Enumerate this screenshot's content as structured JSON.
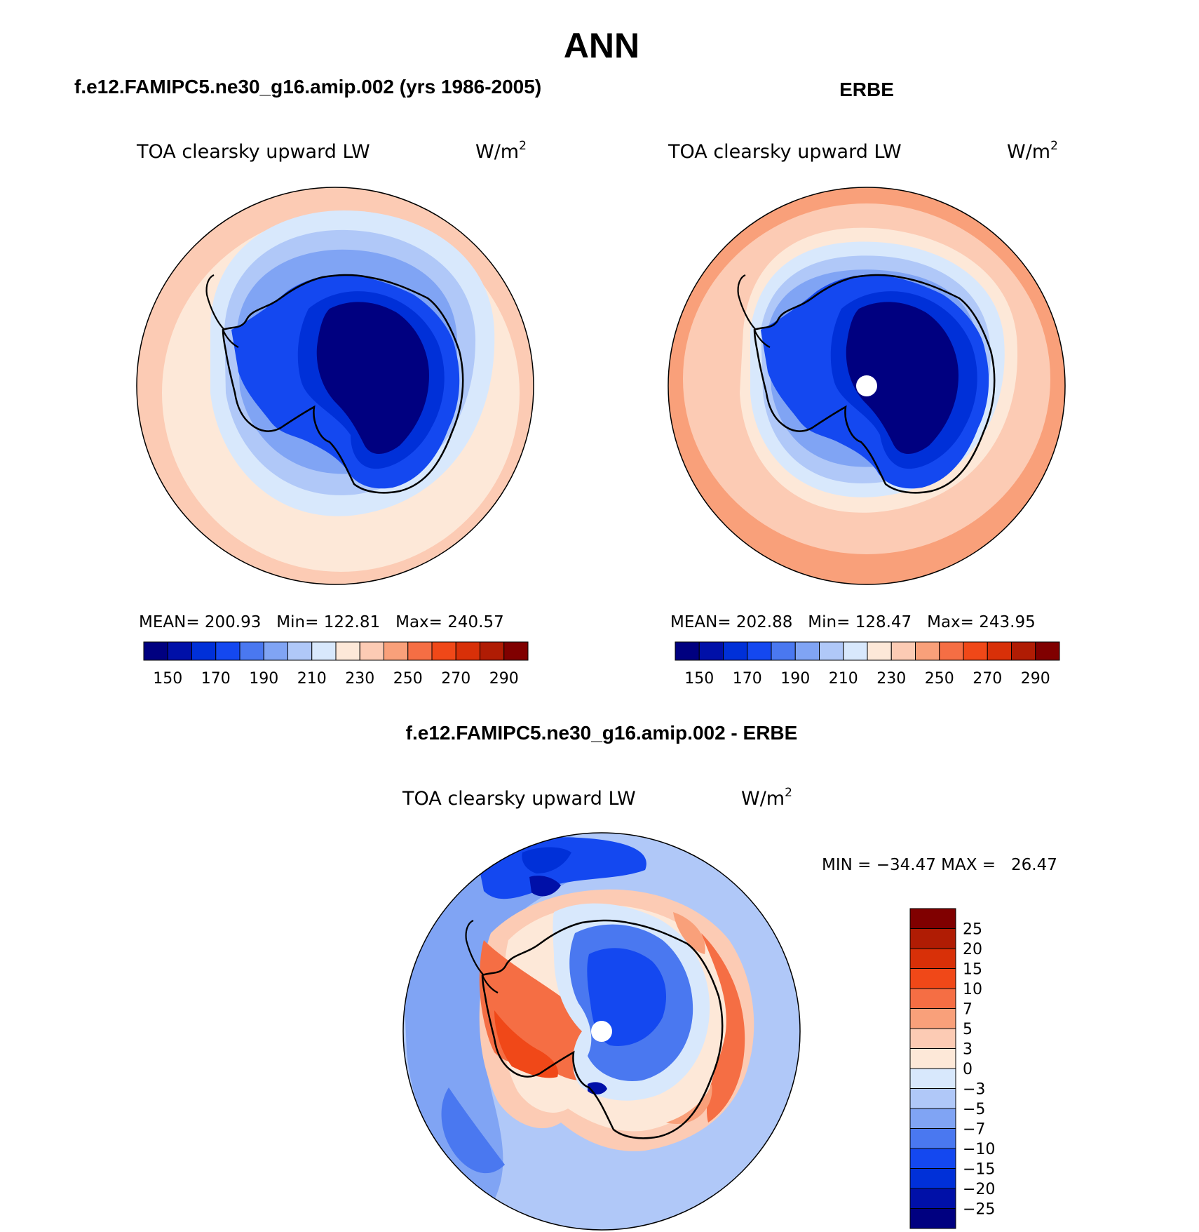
{
  "title": "ANN",
  "panels": [
    {
      "id": "model",
      "heading": "f.e12.FAMIPC5.ne30_g16.amip.002 (yrs 1986-2005)",
      "variable": "TOA clearsky upward LW",
      "units_base": "W/m",
      "units_sup": "2",
      "stats": "MEAN= 200.93   Min= 122.81   Max= 240.57",
      "mean": 200.93,
      "min": 122.81,
      "max": 240.57,
      "pole_hole": false
    },
    {
      "id": "obs",
      "heading": "ERBE",
      "variable": "TOA clearsky upward LW",
      "units_base": "W/m",
      "units_sup": "2",
      "stats": "MEAN= 202.88   Min= 128.47   Max= 243.95",
      "mean": 202.88,
      "min": 128.47,
      "max": 243.95,
      "pole_hole": true
    },
    {
      "id": "diff",
      "heading": "f.e12.FAMIPC5.ne30_g16.amip.002 - ERBE",
      "variable": "TOA clearsky upward LW",
      "units_base": "W/m",
      "units_sup": "2",
      "stats": "MIN = −34.47 MAX =   26.47",
      "min": -34.47,
      "max": 26.47,
      "pole_hole": true
    }
  ],
  "colorbar_abs": {
    "colors": [
      "#000080",
      "#0010a8",
      "#0030d8",
      "#1448f0",
      "#4a78f0",
      "#80a4f4",
      "#b0c8f8",
      "#d8e8fc",
      "#fde8d8",
      "#fccbb4",
      "#f9a07a",
      "#f56e44",
      "#f04818",
      "#d83008",
      "#b01c04",
      "#800000"
    ],
    "tick_labels": [
      "150",
      "170",
      "190",
      "210",
      "230",
      "250",
      "270",
      "290"
    ]
  },
  "colorbar_diff": {
    "colors": [
      "#000080",
      "#0010a8",
      "#0030d8",
      "#1448f0",
      "#4a78f0",
      "#80a4f4",
      "#b0c8f8",
      "#d8e8fc",
      "#fde8d8",
      "#fccbb4",
      "#f9a07a",
      "#f56e44",
      "#f04818",
      "#d83008",
      "#b01c04",
      "#800000"
    ],
    "tick_labels": [
      "25",
      "20",
      "15",
      "10",
      "7",
      "5",
      "3",
      "0",
      "−3",
      "−5",
      "−7",
      "−10",
      "−15",
      "−20",
      "−25"
    ]
  }
}
